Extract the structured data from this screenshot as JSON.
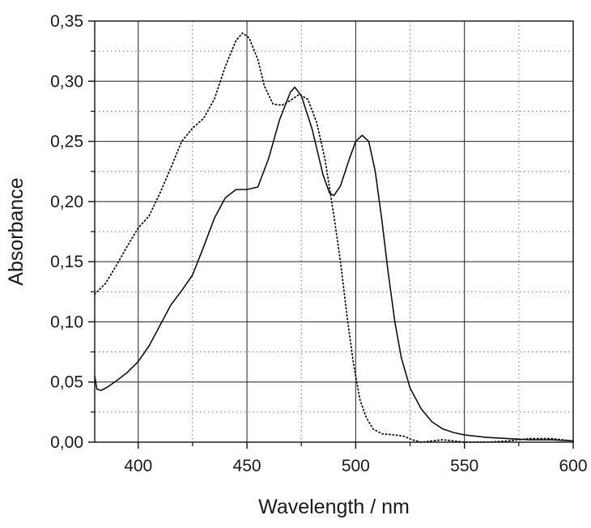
{
  "chart_data": {
    "type": "line",
    "title": "",
    "xlabel": "Wavelength / nm",
    "ylabel": "Absorbance",
    "xlim": [
      380,
      600
    ],
    "ylim": [
      0,
      0.35
    ],
    "x_ticks": [
      {
        "value": 400,
        "label": "400"
      },
      {
        "value": 450,
        "label": "450"
      },
      {
        "value": 500,
        "label": "500"
      },
      {
        "value": 550,
        "label": "550"
      },
      {
        "value": 600,
        "label": "600"
      }
    ],
    "y_ticks": [
      {
        "value": 0.0,
        "label": "0,00"
      },
      {
        "value": 0.05,
        "label": "0,05"
      },
      {
        "value": 0.1,
        "label": "0,10"
      },
      {
        "value": 0.15,
        "label": "0,15"
      },
      {
        "value": 0.2,
        "label": "0,20"
      },
      {
        "value": 0.25,
        "label": "0,25"
      },
      {
        "value": 0.3,
        "label": "0,30"
      },
      {
        "value": 0.35,
        "label": "0,35"
      }
    ],
    "grid": {
      "major": true,
      "minor_dotted": true,
      "x_minor_values": [
        425,
        475,
        525,
        575
      ],
      "y_minor_values": [
        0.025,
        0.075,
        0.125,
        0.175,
        0.225,
        0.275,
        0.325
      ]
    },
    "legend": "none",
    "series": [
      {
        "style": "solid",
        "color": "#111111",
        "points": [
          [
            380,
            0.055
          ],
          [
            381,
            0.044
          ],
          [
            383,
            0.043
          ],
          [
            386,
            0.046
          ],
          [
            390,
            0.051
          ],
          [
            395,
            0.058
          ],
          [
            400,
            0.067
          ],
          [
            405,
            0.08
          ],
          [
            410,
            0.097
          ],
          [
            415,
            0.114
          ],
          [
            420,
            0.126
          ],
          [
            425,
            0.139
          ],
          [
            430,
            0.162
          ],
          [
            435,
            0.186
          ],
          [
            440,
            0.203
          ],
          [
            445,
            0.21
          ],
          [
            450,
            0.21
          ],
          [
            455,
            0.212
          ],
          [
            460,
            0.236
          ],
          [
            465,
            0.268
          ],
          [
            470,
            0.291
          ],
          [
            472,
            0.295
          ],
          [
            475,
            0.288
          ],
          [
            480,
            0.26
          ],
          [
            485,
            0.222
          ],
          [
            488,
            0.207
          ],
          [
            490,
            0.205
          ],
          [
            493,
            0.213
          ],
          [
            497,
            0.235
          ],
          [
            500,
            0.25
          ],
          [
            503,
            0.255
          ],
          [
            506,
            0.25
          ],
          [
            509,
            0.225
          ],
          [
            512,
            0.185
          ],
          [
            515,
            0.14
          ],
          [
            518,
            0.1
          ],
          [
            521,
            0.07
          ],
          [
            525,
            0.045
          ],
          [
            530,
            0.028
          ],
          [
            535,
            0.017
          ],
          [
            540,
            0.011
          ],
          [
            545,
            0.008
          ],
          [
            550,
            0.006
          ],
          [
            560,
            0.004
          ],
          [
            570,
            0.003
          ],
          [
            580,
            0.002
          ],
          [
            590,
            0.002
          ],
          [
            600,
            0.001
          ]
        ]
      },
      {
        "style": "dotted",
        "color": "#111111",
        "points": [
          [
            380,
            0.123
          ],
          [
            385,
            0.132
          ],
          [
            390,
            0.147
          ],
          [
            395,
            0.163
          ],
          [
            400,
            0.178
          ],
          [
            405,
            0.188
          ],
          [
            410,
            0.207
          ],
          [
            415,
            0.228
          ],
          [
            420,
            0.25
          ],
          [
            425,
            0.261
          ],
          [
            430,
            0.269
          ],
          [
            435,
            0.285
          ],
          [
            440,
            0.312
          ],
          [
            445,
            0.334
          ],
          [
            448,
            0.34
          ],
          [
            451,
            0.336
          ],
          [
            455,
            0.318
          ],
          [
            458,
            0.296
          ],
          [
            462,
            0.281
          ],
          [
            466,
            0.28
          ],
          [
            470,
            0.284
          ],
          [
            474,
            0.289
          ],
          [
            478,
            0.285
          ],
          [
            482,
            0.266
          ],
          [
            486,
            0.234
          ],
          [
            490,
            0.188
          ],
          [
            493,
            0.15
          ],
          [
            496,
            0.105
          ],
          [
            499,
            0.065
          ],
          [
            502,
            0.035
          ],
          [
            505,
            0.02
          ],
          [
            508,
            0.011
          ],
          [
            512,
            0.007
          ],
          [
            518,
            0.006
          ],
          [
            522,
            0.005
          ],
          [
            526,
            0.002
          ],
          [
            530,
            0.0
          ],
          [
            535,
            0.001
          ],
          [
            540,
            0.002
          ],
          [
            545,
            0.001
          ],
          [
            550,
            0.0
          ],
          [
            560,
            0.0
          ],
          [
            570,
            0.001
          ],
          [
            580,
            0.003
          ],
          [
            590,
            0.003
          ],
          [
            600,
            0.001
          ]
        ]
      }
    ]
  }
}
